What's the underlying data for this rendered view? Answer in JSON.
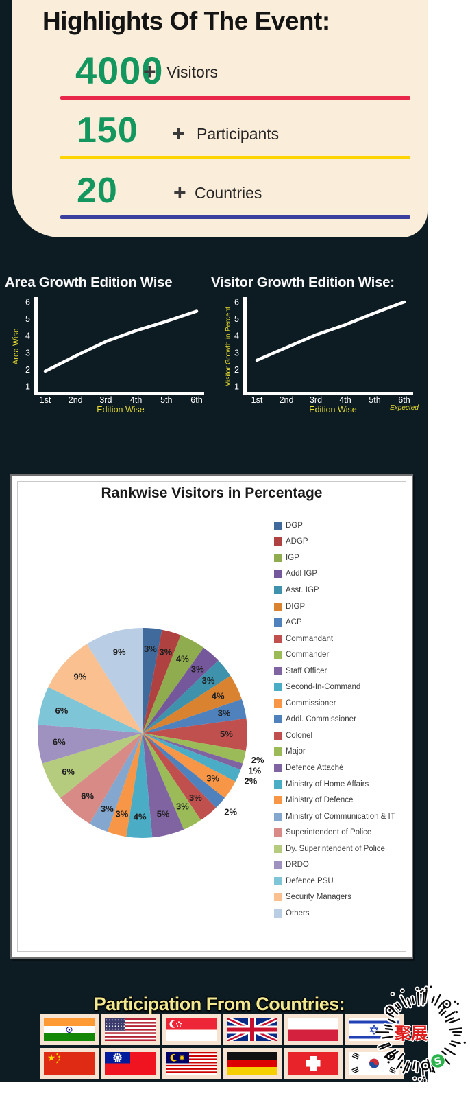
{
  "highlights": {
    "title": "Highlights Of The Event:",
    "value_color": "#13975f",
    "panel_color": "#faedda",
    "rows": [
      {
        "value": "4000",
        "plus": "+",
        "label": "Visitors",
        "line_color": "#e8274b"
      },
      {
        "value": "150",
        "plus": "+",
        "label": "Participants",
        "line_color": "#ffd400"
      },
      {
        "value": "20",
        "plus": "+",
        "label": "Countries",
        "line_color": "#3b3f9e"
      }
    ]
  },
  "chart_data": [
    {
      "type": "line",
      "title": "Area Growth Edition Wise",
      "xlabel": "Edition Wise",
      "ylabel": "Area Wise",
      "categories": [
        "1st",
        "2nd",
        "3rd",
        "4th",
        "5th",
        "6th"
      ],
      "yticks": [
        6,
        5,
        4,
        3,
        2,
        1
      ],
      "ylim": [
        1,
        6
      ],
      "values": [
        1.9,
        2.8,
        3.65,
        4.3,
        4.85,
        5.45
      ],
      "line_color": "#ffffff",
      "label_color": "#e6dc2e"
    },
    {
      "type": "line",
      "title": "Visitor Growth Edition Wise:",
      "xlabel": "Edition Wise",
      "ylabel": "Visitor Growth in Percent",
      "x_note": "Expected",
      "categories": [
        "1st",
        "2nd",
        "3rd",
        "4th",
        "5th",
        "6th"
      ],
      "yticks": [
        6,
        5,
        4,
        3,
        2,
        1
      ],
      "ylim": [
        1,
        6
      ],
      "values": [
        2.55,
        3.3,
        4.05,
        4.65,
        5.35,
        6.0
      ],
      "line_color": "#ffffff",
      "label_color": "#e6dc2e"
    },
    {
      "type": "pie",
      "title": "Rankwise Visitors in Percentage",
      "legend_position": "right",
      "categories": [
        "DGP",
        "ADGP",
        "IGP",
        "Addl IGP",
        "Asst. IGP",
        "DIGP",
        "ACP",
        "Commandant",
        "Commander",
        "Staff Officer",
        "Second-In-Command",
        "Commissioner",
        "Addl. Commissioner",
        "Colonel",
        "Major",
        "Defence Attaché",
        "Ministry of Home Affairs",
        "Ministry of Defence",
        "Ministry of Communication & IT",
        "Superintendent of Police",
        "Dy. Superintendent of Police",
        "DRDO",
        "Defence PSU",
        "Security Managers",
        "Others"
      ],
      "values": [
        3,
        3,
        4,
        3,
        3,
        4,
        3,
        5,
        2,
        1,
        2,
        3,
        2,
        3,
        3,
        5,
        4,
        3,
        3,
        6,
        6,
        6,
        6,
        9,
        9
      ],
      "unit": "%",
      "colors": [
        "#40699c",
        "#af4140",
        "#8fac4e",
        "#74589b",
        "#3e92ac",
        "#d9822f",
        "#4f81bd",
        "#c0504d",
        "#9bbb59",
        "#8064a2",
        "#4bacc6",
        "#f79646",
        "#4f81bd",
        "#c0504d",
        "#9bbb59",
        "#8064a2",
        "#4bacc6",
        "#f79646",
        "#84a7d0",
        "#d88a87",
        "#b5cc7e",
        "#a092c0",
        "#7fc5d8",
        "#fac090",
        "#b9cde5"
      ]
    }
  ],
  "flags": {
    "title": "Participation From Countries:",
    "countries": [
      {
        "id": "india",
        "name": "India"
      },
      {
        "id": "usa",
        "name": "USA"
      },
      {
        "id": "singapore",
        "name": "Singapore"
      },
      {
        "id": "uk",
        "name": "United Kingdom"
      },
      {
        "id": "poland",
        "name": "Poland"
      },
      {
        "id": "israel",
        "name": "Israel"
      },
      {
        "id": "china",
        "name": "China"
      },
      {
        "id": "taiwan",
        "name": "Taiwan"
      },
      {
        "id": "malaysia",
        "name": "Malaysia"
      },
      {
        "id": "germany",
        "name": "Germany"
      },
      {
        "id": "switzerland",
        "name": "Switzerland"
      },
      {
        "id": "south-korea",
        "name": "South Korea"
      }
    ]
  },
  "stamp": {
    "text": "聚展",
    "text_color": "#e01e1e",
    "badge_letter": "S",
    "badge_color": "#2ab24b"
  }
}
